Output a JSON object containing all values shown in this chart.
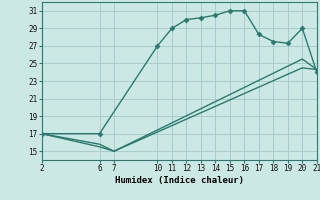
{
  "bg_color": "#cce8e4",
  "grid_color": "#aacccc",
  "line_color": "#2a7a6e",
  "xlabel": "Humidex (Indice chaleur)",
  "xlim": [
    2,
    21
  ],
  "ylim": [
    14,
    32
  ],
  "xticks": [
    2,
    6,
    7,
    10,
    11,
    12,
    13,
    14,
    15,
    16,
    17,
    18,
    19,
    20,
    21
  ],
  "yticks": [
    15,
    17,
    19,
    21,
    23,
    25,
    27,
    29,
    31
  ],
  "line1_x": [
    2,
    6,
    10,
    11,
    12,
    13,
    14,
    15,
    16,
    17,
    18,
    19,
    20,
    21
  ],
  "line1_y": [
    17,
    17,
    27,
    29,
    30,
    30.2,
    30.5,
    31,
    31,
    28.3,
    27.5,
    27.3,
    29,
    24
  ],
  "line2_x": [
    2,
    6,
    7,
    20,
    21
  ],
  "line2_y": [
    17,
    15.8,
    15,
    25.5,
    24.3
  ],
  "line3_x": [
    2,
    6,
    7,
    20,
    21
  ],
  "line3_y": [
    17,
    15.5,
    15,
    24.5,
    24.3
  ],
  "marker": "D",
  "markersize": 2.5,
  "linewidth": 1.0,
  "tick_fontsize": 5.5,
  "label_fontsize": 6.5
}
